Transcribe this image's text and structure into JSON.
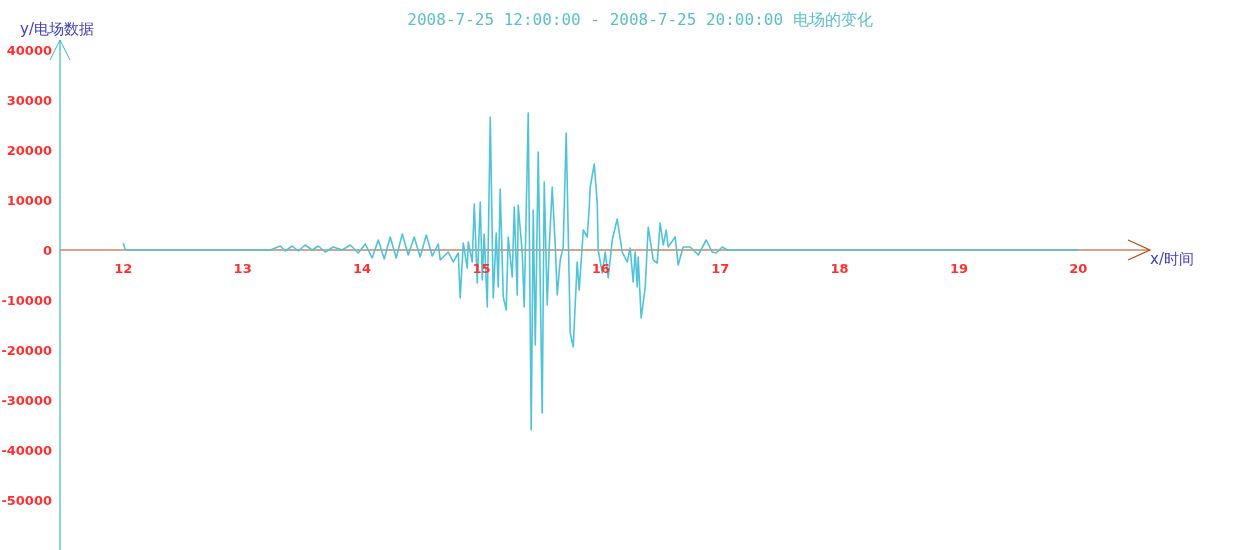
{
  "chart_data": {
    "type": "line",
    "title": "2008-7-25 12:00:00 - 2008-7-25 20:00:00 电场的变化",
    "xlabel": "x/时间",
    "ylabel": "y/电场数据",
    "xlim": [
      11.47,
      20.6
    ],
    "ylim": [
      -60000,
      42000
    ],
    "xticks": [
      12,
      13,
      14,
      15,
      16,
      17,
      18,
      19,
      20
    ],
    "yticks": [
      40000,
      30000,
      20000,
      10000,
      0,
      -10000,
      -20000,
      -30000,
      -40000,
      -50000
    ],
    "series": [
      {
        "color": "#4fc3d9",
        "x": [
          12.0,
          12.017,
          13.231,
          13.315,
          13.357,
          13.415,
          13.466,
          13.524,
          13.583,
          13.633,
          13.692,
          13.759,
          13.834,
          13.901,
          13.968,
          14.027,
          14.085,
          14.136,
          14.186,
          14.236,
          14.286,
          14.337,
          14.387,
          14.437,
          14.487,
          14.538,
          14.588,
          14.638,
          14.655,
          14.722,
          14.764,
          14.806,
          14.822,
          14.848,
          14.881,
          14.89,
          14.923,
          14.94,
          14.965,
          14.99,
          15.007,
          15.023,
          15.049,
          15.074,
          15.099,
          15.124,
          15.141,
          15.157,
          15.183,
          15.208,
          15.224,
          15.258,
          15.275,
          15.3,
          15.308,
          15.342,
          15.358,
          15.375,
          15.392,
          15.417,
          15.434,
          15.451,
          15.476,
          15.509,
          15.526,
          15.551,
          15.568,
          15.593,
          15.618,
          15.635,
          15.66,
          15.685,
          15.71,
          15.744,
          15.769,
          15.802,
          15.819,
          15.853,
          15.886,
          15.903,
          15.911,
          15.945,
          15.97,
          15.978,
          16.012,
          16.037,
          16.062,
          16.096,
          16.137,
          16.179,
          16.221,
          16.246,
          16.271,
          16.288,
          16.305,
          16.313,
          16.338,
          16.372,
          16.397,
          16.439,
          16.472,
          16.497,
          16.523,
          16.548,
          16.564,
          16.623,
          16.648,
          16.69,
          16.749,
          16.816,
          16.883,
          16.933,
          16.966,
          17.017,
          17.059,
          17.168,
          20.0
        ],
        "values": [
          1400,
          0,
          0,
          800,
          -200,
          800,
          -200,
          1000,
          0,
          800,
          -400,
          600,
          0,
          1000,
          -600,
          1200,
          -1600,
          2000,
          -1800,
          2600,
          -1600,
          3200,
          -1000,
          2600,
          -1400,
          3000,
          -1200,
          1200,
          -2000,
          -400,
          -2400,
          -600,
          -9600,
          1400,
          -3600,
          1600,
          -2400,
          9200,
          -6600,
          9600,
          -6000,
          3200,
          -11400,
          26600,
          -9600,
          3400,
          -7400,
          12200,
          -9400,
          -12000,
          2600,
          -5400,
          8600,
          -9000,
          9000,
          -600,
          -11400,
          7400,
          27400,
          -36000,
          8000,
          -19000,
          19600,
          -32600,
          13600,
          -11000,
          600,
          12600,
          1000,
          -9000,
          -2000,
          600,
          23400,
          -16600,
          -19400,
          -2400,
          -8000,
          4000,
          2600,
          8600,
          12600,
          17200,
          9400,
          0,
          -4600,
          -400,
          -5600,
          2000,
          6200,
          -400,
          -2400,
          400,
          -6400,
          -400,
          -7400,
          -1400,
          -13600,
          -7400,
          4600,
          -2000,
          -2600,
          5400,
          1000,
          4000,
          600,
          2600,
          -3000,
          600,
          600,
          -1000,
          2000,
          -400,
          -600,
          600,
          0,
          0,
          0
        ]
      }
    ]
  }
}
